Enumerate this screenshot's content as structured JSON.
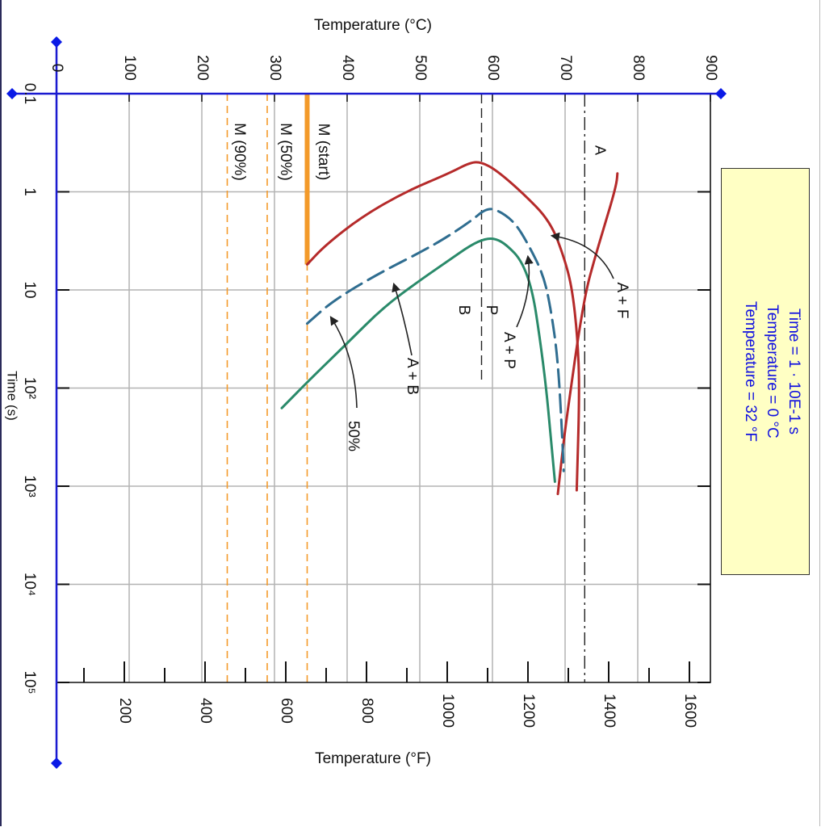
{
  "chart_data": {
    "type": "line",
    "title": "",
    "axis_top_label": "Temperature (°C)",
    "axis_bottom_label": "Temperature (°F)",
    "axis_time_label": "Time (s)",
    "time_scale": "log",
    "time_range_s": [
      0.1,
      100000
    ],
    "celsius_range": [
      0,
      900
    ],
    "celsius_ticks": [
      "0",
      "100",
      "200",
      "300",
      "400",
      "500",
      "600",
      "700",
      "800",
      "900"
    ],
    "fahrenheit_range": [
      32,
      1652
    ],
    "fahrenheit_ticks": [
      "200",
      "400",
      "600",
      "800",
      "1000",
      "1200",
      "1400",
      "1600"
    ],
    "time_ticks": [
      {
        "v": 0.1,
        "label": "0.1"
      },
      {
        "v": 1,
        "label": "1"
      },
      {
        "v": 10,
        "label": "10"
      },
      {
        "v": 100,
        "label": "10²"
      },
      {
        "v": 1000,
        "label": "10³"
      },
      {
        "v": 10000,
        "label": "10⁴"
      },
      {
        "v": 100000,
        "label": "10⁵"
      }
    ],
    "grid": true,
    "series": [
      {
        "name": "A + F",
        "color": "#b52a2a",
        "dash": "solid",
        "points": [
          [
            0.65,
            772
          ],
          [
            0.8,
            771
          ],
          [
            1.2,
            765
          ],
          [
            2.5,
            752
          ],
          [
            5,
            740
          ],
          [
            10,
            729
          ],
          [
            30,
            718
          ],
          [
            100,
            708
          ],
          [
            300,
            699
          ],
          [
            1200,
            690
          ]
        ]
      },
      {
        "name": "",
        "color": "#b52a2a",
        "dash": "solid",
        "points": [
          [
            5.5,
            345
          ],
          [
            3.5,
            370
          ],
          [
            1.8,
            420
          ],
          [
            1.0,
            480
          ],
          [
            0.65,
            540
          ],
          [
            0.5,
            570
          ],
          [
            0.5,
            585
          ],
          [
            0.6,
            605
          ],
          [
            1.0,
            640
          ],
          [
            2.0,
            680
          ],
          [
            5,
            700
          ],
          [
            10,
            710
          ],
          [
            30,
            717
          ],
          [
            100,
            720
          ],
          [
            1100,
            716
          ]
        ]
      },
      {
        "name": "50%",
        "color": "#2f6d90",
        "dash": "dashed",
        "points": [
          [
            22,
            345
          ],
          [
            13,
            380
          ],
          [
            7,
            440
          ],
          [
            3.5,
            520
          ],
          [
            2.0,
            570
          ],
          [
            1.5,
            590
          ],
          [
            1.5,
            605
          ],
          [
            2.0,
            630
          ],
          [
            3.5,
            650
          ],
          [
            7,
            670
          ],
          [
            15,
            680
          ],
          [
            50,
            690
          ],
          [
            300,
            696
          ],
          [
            700,
            698
          ]
        ]
      },
      {
        "name": "",
        "color": "#2a8a6a",
        "dash": "solid",
        "points": [
          [
            160,
            310
          ],
          [
            80,
            350
          ],
          [
            35,
            400
          ],
          [
            15,
            450
          ],
          [
            8,
            500
          ],
          [
            5,
            540
          ],
          [
            3.5,
            570
          ],
          [
            3,
            590
          ],
          [
            3,
            605
          ],
          [
            3.5,
            620
          ],
          [
            5,
            640
          ],
          [
            10,
            655
          ],
          [
            30,
            665
          ],
          [
            100,
            674
          ],
          [
            300,
            680
          ],
          [
            900,
            686
          ]
        ]
      }
    ],
    "temperature_lines": [
      {
        "label": "A",
        "celsius": 727,
        "dash": "dash-dot"
      },
      {
        "label": "P",
        "celsius": 600,
        "dash": "dash-dot"
      },
      {
        "label": "B",
        "celsius": 585,
        "dash": "dash-dot"
      },
      {
        "label": "M (start)",
        "celsius": 345,
        "color": "#f39a2a"
      },
      {
        "label": "M (50%)",
        "celsius": 290,
        "color": "#f39a2a"
      },
      {
        "label": "M (90%)",
        "celsius": 235,
        "color": "#f39a2a"
      }
    ],
    "region_labels": [
      "A + F",
      "A + P",
      "A + B",
      "50%"
    ]
  },
  "readout": {
    "time": "Time = 1 · 10E-1 s",
    "temp_c": "Temperature = 0 °C",
    "temp_f": "Temperature = 32 °F"
  },
  "colors": {
    "axis_blue": "#1a1ad0",
    "handle_blue": "#0a1ae6",
    "ferrite": "#b52a2a",
    "fifty_percent": "#2f6d90",
    "bainite_pearlite": "#2a8a6a",
    "martensite": "#f39a2a"
  }
}
